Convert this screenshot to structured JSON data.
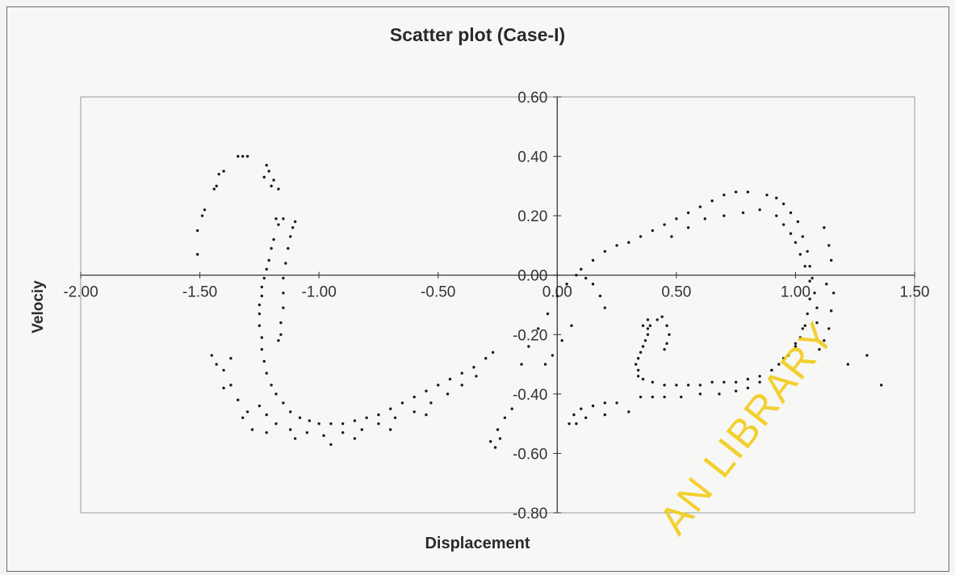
{
  "chart_data": {
    "type": "scatter",
    "title": "Scatter plot (Case-I)",
    "xlabel": "Displacement",
    "ylabel": "Velociy",
    "xlim": [
      -2.0,
      1.5
    ],
    "ylim": [
      -0.8,
      0.6
    ],
    "x_ticks": [
      "-2.00",
      "-1.50",
      "-1.00",
      "-0.50",
      "0.00",
      "0.50",
      "1.00",
      "1.50"
    ],
    "y_ticks": [
      "0.60",
      "0.40",
      "0.20",
      "0.00",
      "-0.20",
      "-0.40",
      "-0.60",
      "-0.80"
    ],
    "grid": false,
    "marker_color": "#1a1a1a",
    "series": [
      {
        "points": [
          [
            -1.51,
            0.07
          ],
          [
            -1.51,
            0.15
          ],
          [
            -1.49,
            0.2
          ],
          [
            -1.48,
            0.22
          ],
          [
            -1.44,
            0.29
          ],
          [
            -1.43,
            0.3
          ],
          [
            -1.42,
            0.34
          ],
          [
            -1.4,
            0.35
          ],
          [
            -1.34,
            0.4
          ],
          [
            -1.32,
            0.4
          ],
          [
            -1.3,
            0.4
          ],
          [
            -1.22,
            0.37
          ],
          [
            -1.21,
            0.35
          ],
          [
            -1.19,
            0.32
          ],
          [
            -1.23,
            0.33
          ],
          [
            -1.2,
            0.3
          ],
          [
            -1.17,
            0.29
          ],
          [
            -1.18,
            0.19
          ],
          [
            -1.17,
            0.17
          ],
          [
            -1.15,
            0.19
          ],
          [
            -1.1,
            0.18
          ],
          [
            -1.11,
            0.16
          ],
          [
            -1.12,
            0.13
          ],
          [
            -1.13,
            0.09
          ],
          [
            -1.14,
            0.04
          ],
          [
            -1.15,
            -0.01
          ],
          [
            -1.15,
            -0.06
          ],
          [
            -1.15,
            -0.11
          ],
          [
            -1.16,
            -0.16
          ],
          [
            -1.16,
            -0.2
          ],
          [
            -1.17,
            -0.22
          ],
          [
            -1.19,
            0.12
          ],
          [
            -1.2,
            0.09
          ],
          [
            -1.21,
            0.05
          ],
          [
            -1.22,
            0.02
          ],
          [
            -1.23,
            -0.01
          ],
          [
            -1.24,
            -0.04
          ],
          [
            -1.24,
            -0.07
          ],
          [
            -1.25,
            -0.1
          ],
          [
            -1.25,
            -0.13
          ],
          [
            -1.25,
            -0.17
          ],
          [
            -1.24,
            -0.21
          ],
          [
            -1.24,
            -0.25
          ],
          [
            -1.23,
            -0.29
          ],
          [
            -1.22,
            -0.33
          ],
          [
            -1.2,
            -0.37
          ],
          [
            -1.18,
            -0.4
          ],
          [
            -1.15,
            -0.43
          ],
          [
            -1.12,
            -0.46
          ],
          [
            -1.08,
            -0.48
          ],
          [
            -1.04,
            -0.49
          ],
          [
            -1.0,
            -0.5
          ],
          [
            -0.95,
            -0.5
          ],
          [
            -0.9,
            -0.5
          ],
          [
            -0.85,
            -0.49
          ],
          [
            -0.8,
            -0.48
          ],
          [
            -0.75,
            -0.47
          ],
          [
            -0.7,
            -0.45
          ],
          [
            -0.65,
            -0.43
          ],
          [
            -0.6,
            -0.41
          ],
          [
            -0.55,
            -0.39
          ],
          [
            -0.5,
            -0.37
          ],
          [
            -0.45,
            -0.35
          ],
          [
            -0.4,
            -0.33
          ],
          [
            -0.35,
            -0.31
          ],
          [
            -0.3,
            -0.28
          ],
          [
            -0.27,
            -0.26
          ],
          [
            -1.25,
            -0.44
          ],
          [
            -1.22,
            -0.47
          ],
          [
            -1.18,
            -0.5
          ],
          [
            -1.12,
            -0.52
          ],
          [
            -1.05,
            -0.53
          ],
          [
            -0.98,
            -0.54
          ],
          [
            -0.9,
            -0.53
          ],
          [
            -0.82,
            -0.52
          ],
          [
            -0.75,
            -0.5
          ],
          [
            -0.68,
            -0.48
          ],
          [
            -0.6,
            -0.46
          ],
          [
            -0.53,
            -0.43
          ],
          [
            -0.46,
            -0.4
          ],
          [
            -0.4,
            -0.37
          ],
          [
            -0.34,
            -0.34
          ],
          [
            -1.32,
            -0.48
          ],
          [
            -1.28,
            -0.52
          ],
          [
            -1.22,
            -0.53
          ],
          [
            -1.1,
            -0.55
          ],
          [
            -0.95,
            -0.57
          ],
          [
            -0.85,
            -0.55
          ],
          [
            -0.7,
            -0.52
          ],
          [
            -0.55,
            -0.47
          ],
          [
            -1.45,
            -0.27
          ],
          [
            -1.43,
            -0.3
          ],
          [
            -1.4,
            -0.32
          ],
          [
            -1.37,
            -0.37
          ],
          [
            -1.34,
            -0.42
          ],
          [
            -1.3,
            -0.46
          ],
          [
            -1.37,
            -0.28
          ],
          [
            -1.4,
            -0.38
          ],
          [
            -0.28,
            -0.56
          ],
          [
            -0.25,
            -0.52
          ],
          [
            -0.22,
            -0.48
          ],
          [
            -0.19,
            -0.45
          ],
          [
            -0.26,
            -0.58
          ],
          [
            -0.24,
            -0.55
          ],
          [
            -0.15,
            -0.3
          ],
          [
            -0.12,
            -0.24
          ],
          [
            -0.08,
            -0.18
          ],
          [
            -0.04,
            -0.13
          ],
          [
            0.0,
            -0.07
          ],
          [
            0.04,
            -0.03
          ],
          [
            0.08,
            0.0
          ],
          [
            0.12,
            -0.01
          ],
          [
            0.15,
            -0.03
          ],
          [
            0.18,
            -0.07
          ],
          [
            0.2,
            -0.11
          ],
          [
            -0.05,
            -0.3
          ],
          [
            -0.02,
            -0.27
          ],
          [
            0.02,
            -0.22
          ],
          [
            0.06,
            -0.17
          ],
          [
            0.1,
            0.02
          ],
          [
            0.15,
            0.05
          ],
          [
            0.2,
            0.08
          ],
          [
            0.25,
            0.1
          ],
          [
            0.3,
            0.11
          ],
          [
            0.35,
            0.13
          ],
          [
            0.4,
            0.15
          ],
          [
            0.45,
            0.17
          ],
          [
            0.5,
            0.19
          ],
          [
            0.55,
            0.21
          ],
          [
            0.6,
            0.23
          ],
          [
            0.65,
            0.25
          ],
          [
            0.7,
            0.27
          ],
          [
            0.75,
            0.28
          ],
          [
            0.8,
            0.28
          ],
          [
            0.48,
            0.13
          ],
          [
            0.55,
            0.16
          ],
          [
            0.62,
            0.19
          ],
          [
            0.7,
            0.2
          ],
          [
            0.78,
            0.21
          ],
          [
            0.85,
            0.22
          ],
          [
            0.88,
            0.27
          ],
          [
            0.92,
            0.26
          ],
          [
            0.95,
            0.24
          ],
          [
            0.98,
            0.21
          ],
          [
            1.01,
            0.18
          ],
          [
            1.03,
            0.13
          ],
          [
            1.05,
            0.08
          ],
          [
            1.06,
            0.03
          ],
          [
            1.07,
            -0.01
          ],
          [
            1.08,
            -0.06
          ],
          [
            1.09,
            -0.11
          ],
          [
            1.09,
            -0.16
          ],
          [
            0.92,
            0.2
          ],
          [
            0.95,
            0.17
          ],
          [
            0.98,
            0.14
          ],
          [
            1.0,
            0.11
          ],
          [
            1.02,
            0.07
          ],
          [
            1.04,
            0.03
          ],
          [
            1.06,
            -0.02
          ],
          [
            1.06,
            -0.08
          ],
          [
            1.05,
            -0.13
          ],
          [
            1.04,
            -0.17
          ],
          [
            1.02,
            -0.21
          ],
          [
            1.0,
            -0.24
          ],
          [
            0.97,
            -0.27
          ],
          [
            0.93,
            -0.3
          ],
          [
            0.9,
            -0.32
          ],
          [
            0.85,
            -0.34
          ],
          [
            0.8,
            -0.35
          ],
          [
            0.75,
            -0.36
          ],
          [
            0.7,
            -0.36
          ],
          [
            0.65,
            -0.36
          ],
          [
            0.6,
            -0.37
          ],
          [
            0.55,
            -0.37
          ],
          [
            0.5,
            -0.37
          ],
          [
            0.45,
            -0.37
          ],
          [
            0.4,
            -0.36
          ],
          [
            0.36,
            -0.35
          ],
          [
            0.34,
            -0.32
          ],
          [
            0.34,
            -0.28
          ],
          [
            0.36,
            -0.24
          ],
          [
            0.38,
            -0.2
          ],
          [
            0.39,
            -0.17
          ],
          [
            0.38,
            -0.15
          ],
          [
            0.36,
            -0.17
          ],
          [
            0.34,
            -0.34
          ],
          [
            0.33,
            -0.3
          ],
          [
            0.35,
            -0.26
          ],
          [
            0.37,
            -0.22
          ],
          [
            0.38,
            -0.18
          ],
          [
            1.03,
            -0.18
          ],
          [
            1.0,
            -0.23
          ],
          [
            0.95,
            -0.28
          ],
          [
            0.9,
            -0.32
          ],
          [
            0.85,
            -0.36
          ],
          [
            0.8,
            -0.38
          ],
          [
            0.75,
            -0.39
          ],
          [
            0.68,
            -0.4
          ],
          [
            0.6,
            -0.4
          ],
          [
            0.52,
            -0.41
          ],
          [
            0.45,
            -0.41
          ],
          [
            0.4,
            -0.41
          ],
          [
            0.35,
            -0.41
          ],
          [
            0.25,
            -0.43
          ],
          [
            0.2,
            -0.43
          ],
          [
            0.15,
            -0.44
          ],
          [
            0.1,
            -0.45
          ],
          [
            0.07,
            -0.47
          ],
          [
            0.05,
            -0.5
          ],
          [
            0.3,
            -0.46
          ],
          [
            0.2,
            -0.47
          ],
          [
            0.12,
            -0.48
          ],
          [
            0.08,
            -0.5
          ],
          [
            0.42,
            -0.15
          ],
          [
            0.44,
            -0.14
          ],
          [
            0.46,
            -0.17
          ],
          [
            0.47,
            -0.2
          ],
          [
            0.46,
            -0.23
          ],
          [
            0.45,
            -0.25
          ],
          [
            1.1,
            -0.25
          ],
          [
            1.12,
            -0.22
          ],
          [
            1.14,
            -0.18
          ],
          [
            1.15,
            -0.12
          ],
          [
            1.16,
            -0.06
          ],
          [
            1.13,
            -0.03
          ],
          [
            1.12,
            0.16
          ],
          [
            1.14,
            0.1
          ],
          [
            1.15,
            0.05
          ],
          [
            1.3,
            -0.27
          ],
          [
            1.36,
            -0.37
          ],
          [
            1.22,
            -0.3
          ]
        ]
      }
    ]
  },
  "watermark": "AN LIBRARY"
}
